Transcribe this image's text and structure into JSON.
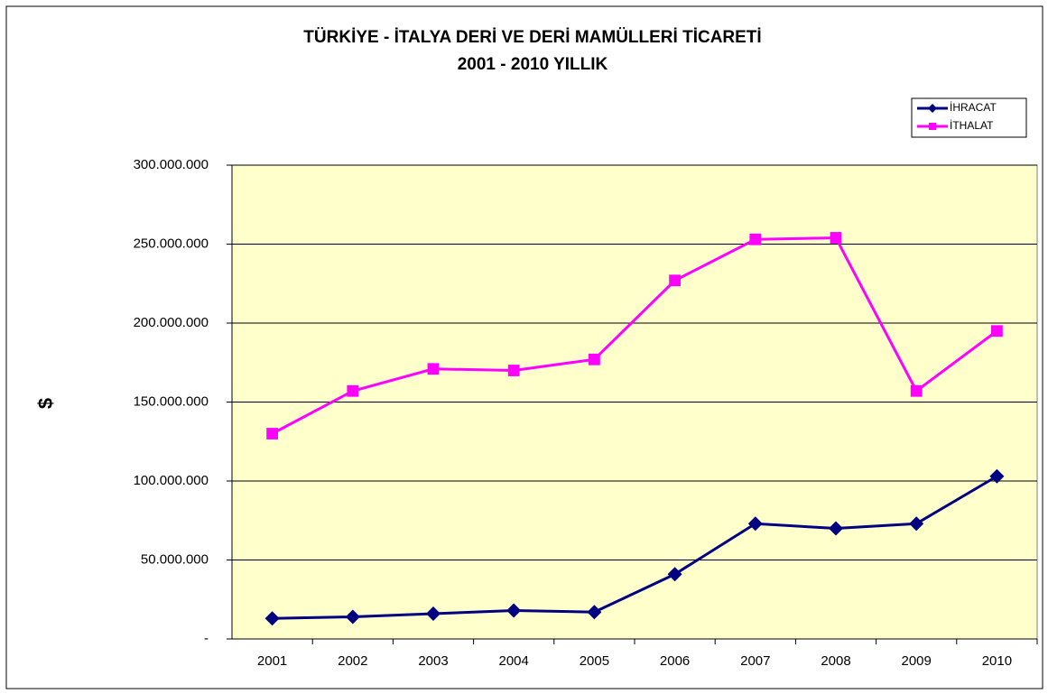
{
  "chart_data": {
    "type": "line",
    "title": "TÜRKİYE - İTALYA DERİ VE DERİ MAMÜLLERİ TİCARETİ",
    "subtitle": "2001 - 2010 YILLIK",
    "y_label": "$",
    "categories": [
      "2001",
      "2002",
      "2003",
      "2004",
      "2005",
      "2006",
      "2007",
      "2008",
      "2009",
      "2010"
    ],
    "series": [
      {
        "name": "İHRACAT",
        "color": "#000080",
        "marker": "diamond",
        "values": [
          13000000,
          14000000,
          16000000,
          18000000,
          17000000,
          41000000,
          73000000,
          70000000,
          73000000,
          103000000
        ]
      },
      {
        "name": "İTHALAT",
        "color": "#ff00ff",
        "marker": "square",
        "values": [
          130000000,
          157000000,
          171000000,
          170000000,
          177000000,
          227000000,
          253000000,
          254000000,
          157000000,
          195000000
        ]
      }
    ],
    "ylim": [
      0,
      300000000
    ],
    "yticks": [
      {
        "value": 0,
        "label": "-"
      },
      {
        "value": 50000000,
        "label": "50.000.000"
      },
      {
        "value": 100000000,
        "label": "100.000.000"
      },
      {
        "value": 150000000,
        "label": "150.000.000"
      },
      {
        "value": 200000000,
        "label": "200.000.000"
      },
      {
        "value": 250000000,
        "label": "250.000.000"
      },
      {
        "value": 300000000,
        "label": "300.000.000"
      }
    ],
    "grid": true,
    "legend": "top-right"
  }
}
